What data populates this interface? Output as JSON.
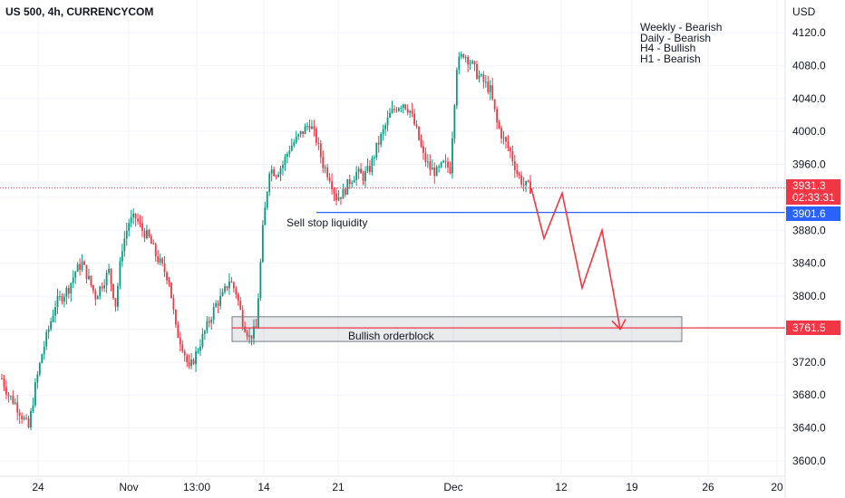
{
  "header": {
    "title": "US 500, 4h, CURRENCYCOM",
    "currency": "USD"
  },
  "bias_notes": [
    "Weekly - Bearish",
    "Daily - Bearish",
    "H4 - Bullish",
    "H1 - Bearish"
  ],
  "annotations": {
    "sell_stop": "Sell stop liquidity",
    "orderblock": "Bullish orderblock"
  },
  "price_tags": {
    "current_price": "3931.3",
    "countdown": "02:33:31",
    "sell_stop_level": "3901.6",
    "orderblock_level": "3761.5"
  },
  "colors": {
    "up": "#089981",
    "down": "#f23645",
    "blue_line": "#2962ff",
    "projection": "#f23645",
    "grid": "#f0f3fa"
  },
  "chart_data": {
    "type": "candlestick",
    "title": "US 500, 4h, CURRENCYCOM",
    "y_unit": "USD",
    "ylim": [
      3580,
      4140
    ],
    "y_ticks": [
      3600.0,
      3640.0,
      3680.0,
      3720.0,
      3760.0,
      3800.0,
      3840.0,
      3880.0,
      3920.0,
      3960.0,
      4000.0,
      4040.0,
      4080.0,
      4120.0
    ],
    "x_tick_labels": [
      "24",
      "Nov",
      "13:00",
      "14",
      "21",
      "Dec",
      "12",
      "19",
      "26",
      "20"
    ],
    "grid": true,
    "price_path": [
      [
        0,
        3700
      ],
      [
        3,
        3680
      ],
      [
        6,
        3670
      ],
      [
        9,
        3655
      ],
      [
        12,
        3640
      ],
      [
        15,
        3690
      ],
      [
        18,
        3730
      ],
      [
        21,
        3760
      ],
      [
        24,
        3790
      ],
      [
        27,
        3800
      ],
      [
        30,
        3810
      ],
      [
        33,
        3830
      ],
      [
        36,
        3840
      ],
      [
        39,
        3820
      ],
      [
        42,
        3800
      ],
      [
        45,
        3815
      ],
      [
        48,
        3830
      ],
      [
        51,
        3790
      ],
      [
        54,
        3860
      ],
      [
        57,
        3890
      ],
      [
        60,
        3895
      ],
      [
        63,
        3880
      ],
      [
        66,
        3870
      ],
      [
        69,
        3850
      ],
      [
        72,
        3835
      ],
      [
        75,
        3820
      ],
      [
        78,
        3760
      ],
      [
        81,
        3740
      ],
      [
        84,
        3710
      ],
      [
        87,
        3730
      ],
      [
        90,
        3750
      ],
      [
        93,
        3770
      ],
      [
        96,
        3790
      ],
      [
        99,
        3800
      ],
      [
        102,
        3820
      ],
      [
        105,
        3805
      ],
      [
        108,
        3770
      ],
      [
        111,
        3750
      ],
      [
        114,
        3760
      ],
      [
        117,
        3880
      ],
      [
        120,
        3955
      ],
      [
        123,
        3950
      ],
      [
        126,
        3960
      ],
      [
        129,
        3980
      ],
      [
        132,
        3990
      ],
      [
        135,
        4000
      ],
      [
        138,
        4010
      ],
      [
        141,
        3990
      ],
      [
        144,
        3960
      ],
      [
        147,
        3945
      ],
      [
        150,
        3920
      ],
      [
        153,
        3925
      ],
      [
        156,
        3940
      ],
      [
        159,
        3950
      ],
      [
        162,
        3945
      ],
      [
        165,
        3955
      ],
      [
        168,
        3980
      ],
      [
        171,
        4000
      ],
      [
        174,
        4020
      ],
      [
        177,
        4030
      ],
      [
        180,
        4035
      ],
      [
        183,
        4025
      ],
      [
        186,
        4000
      ],
      [
        189,
        3970
      ],
      [
        192,
        3955
      ],
      [
        195,
        3950
      ],
      [
        198,
        3960
      ],
      [
        201,
        3955
      ],
      [
        204,
        4080
      ],
      [
        207,
        4095
      ],
      [
        210,
        4085
      ],
      [
        213,
        4070
      ],
      [
        216,
        4060
      ],
      [
        219,
        4050
      ],
      [
        222,
        4010
      ],
      [
        225,
        3990
      ],
      [
        228,
        3975
      ],
      [
        231,
        3950
      ],
      [
        234,
        3935
      ],
      [
        237,
        3931.3
      ]
    ],
    "levels": [
      {
        "label": "Sell stop liquidity",
        "value": 3901.6
      },
      {
        "label": "Bullish orderblock",
        "value": 3761.5,
        "zone_top": 3775,
        "zone_bottom": 3745
      }
    ],
    "current_price": 3931.3,
    "projection": [
      3931.3,
      3870,
      3925,
      3810,
      3880,
      3760
    ]
  }
}
